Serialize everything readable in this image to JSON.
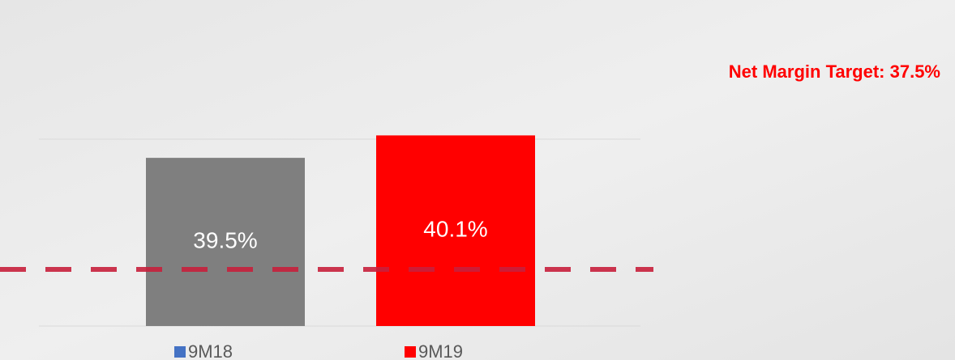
{
  "chart_data": {
    "type": "bar",
    "annotation": "Net Margin Target: 37.5%",
    "categories": [
      "9M18",
      "9M19"
    ],
    "values": [
      39.5,
      40.1
    ],
    "value_labels": [
      "39.5%",
      "40.1%"
    ],
    "colors": [
      "#7f7f7f",
      "#ff0000"
    ],
    "legend_colors": [
      "#4472c4",
      "#ff0000"
    ],
    "ylim": [
      35,
      40
    ],
    "grid": true
  }
}
